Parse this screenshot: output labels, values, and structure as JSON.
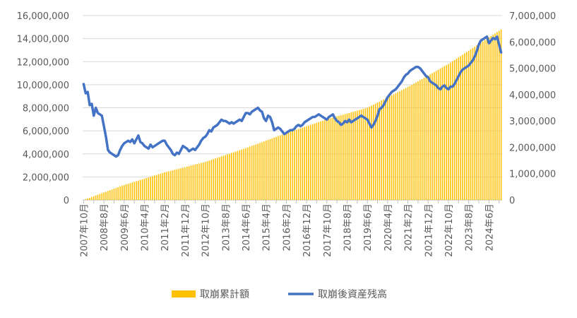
{
  "chart_data": {
    "type": "bar+line",
    "x_start": "2007-10",
    "x_end": "2024-12",
    "x_tick_labels": [
      "2007年10月",
      "2008年8月",
      "2009年6月",
      "2010年4月",
      "2011年2月",
      "2011年12月",
      "2012年10月",
      "2013年8月",
      "2014年6月",
      "2015年4月",
      "2016年2月",
      "2016年12月",
      "2017年10月",
      "2018年8月",
      "2019年6月",
      "2020年4月",
      "2021年2月",
      "2021年12月",
      "2022年10月",
      "2023年8月",
      "2024年6月"
    ],
    "y_left": {
      "min": 0,
      "max": 16000000,
      "step": 2000000,
      "tick_labels": [
        "0",
        "2,000,000",
        "4,000,000",
        "6,000,000",
        "8,000,000",
        "10,000,000",
        "12,000,000",
        "14,000,000",
        "16,000,000"
      ]
    },
    "y_right": {
      "min": 0,
      "max": 7000000,
      "step": 1000000,
      "tick_labels": [
        "0",
        "1,000,000",
        "2,000,000",
        "3,000,000",
        "4,000,000",
        "5,000,000",
        "6,000,000",
        "7,000,000"
      ]
    },
    "grid": true,
    "legend_position": "bottom",
    "series": [
      {
        "name": "取崩累計額",
        "type": "bar",
        "axis": "left",
        "color": "#FFC000",
        "anchors": [
          [
            "2007-10",
            0
          ],
          [
            "2009-06",
            1300000
          ],
          [
            "2011-02",
            2400000
          ],
          [
            "2012-10",
            3300000
          ],
          [
            "2014-06",
            4500000
          ],
          [
            "2016-02",
            5800000
          ],
          [
            "2017-10",
            7000000
          ],
          [
            "2019-06",
            8000000
          ],
          [
            "2021-02",
            9800000
          ],
          [
            "2022-10",
            11800000
          ],
          [
            "2024-12",
            14800000
          ]
        ]
      },
      {
        "name": "取崩後資産残高",
        "type": "line",
        "axis": "right",
        "color": "#4472C4",
        "points": [
          [
            "2007-10",
            4400000
          ],
          [
            "2007-11",
            4050000
          ],
          [
            "2007-12",
            4100000
          ],
          [
            "2008-01",
            3600000
          ],
          [
            "2008-02",
            3650000
          ],
          [
            "2008-03",
            3200000
          ],
          [
            "2008-04",
            3500000
          ],
          [
            "2008-05",
            3300000
          ],
          [
            "2008-06",
            3250000
          ],
          [
            "2008-07",
            3200000
          ],
          [
            "2008-08",
            2800000
          ],
          [
            "2008-09",
            2400000
          ],
          [
            "2008-10",
            1900000
          ],
          [
            "2008-11",
            1800000
          ],
          [
            "2008-12",
            1750000
          ],
          [
            "2009-01",
            1700000
          ],
          [
            "2009-02",
            1650000
          ],
          [
            "2009-03",
            1700000
          ],
          [
            "2009-04",
            1900000
          ],
          [
            "2009-05",
            2050000
          ],
          [
            "2009-06",
            2150000
          ],
          [
            "2009-07",
            2200000
          ],
          [
            "2009-08",
            2250000
          ],
          [
            "2009-09",
            2200000
          ],
          [
            "2009-10",
            2300000
          ],
          [
            "2009-11",
            2150000
          ],
          [
            "2009-12",
            2300000
          ],
          [
            "2010-01",
            2450000
          ],
          [
            "2010-02",
            2200000
          ],
          [
            "2010-03",
            2150000
          ],
          [
            "2010-04",
            2050000
          ],
          [
            "2010-05",
            2000000
          ],
          [
            "2010-06",
            1950000
          ],
          [
            "2010-07",
            2100000
          ],
          [
            "2010-08",
            2000000
          ],
          [
            "2010-09",
            2050000
          ],
          [
            "2010-10",
            2100000
          ],
          [
            "2010-11",
            2150000
          ],
          [
            "2010-12",
            2200000
          ],
          [
            "2011-01",
            2250000
          ],
          [
            "2011-02",
            2250000
          ],
          [
            "2011-03",
            2100000
          ],
          [
            "2011-04",
            2000000
          ],
          [
            "2011-05",
            1900000
          ],
          [
            "2011-06",
            1750000
          ],
          [
            "2011-07",
            1700000
          ],
          [
            "2011-08",
            1800000
          ],
          [
            "2011-09",
            1750000
          ],
          [
            "2011-10",
            1900000
          ],
          [
            "2011-11",
            2050000
          ],
          [
            "2011-12",
            2000000
          ],
          [
            "2012-01",
            1950000
          ],
          [
            "2012-02",
            1850000
          ],
          [
            "2012-03",
            1900000
          ],
          [
            "2012-04",
            1950000
          ],
          [
            "2012-05",
            1900000
          ],
          [
            "2012-06",
            2000000
          ],
          [
            "2012-07",
            2100000
          ],
          [
            "2012-08",
            2250000
          ],
          [
            "2012-09",
            2350000
          ],
          [
            "2012-10",
            2400000
          ],
          [
            "2012-11",
            2500000
          ],
          [
            "2012-12",
            2650000
          ],
          [
            "2013-01",
            2600000
          ],
          [
            "2013-02",
            2750000
          ],
          [
            "2013-03",
            2800000
          ],
          [
            "2013-04",
            2850000
          ],
          [
            "2013-05",
            2950000
          ],
          [
            "2013-06",
            3050000
          ],
          [
            "2013-07",
            3000000
          ],
          [
            "2013-08",
            3000000
          ],
          [
            "2013-09",
            2950000
          ],
          [
            "2013-10",
            2900000
          ],
          [
            "2013-11",
            2950000
          ],
          [
            "2013-12",
            2900000
          ],
          [
            "2014-01",
            2950000
          ],
          [
            "2014-02",
            3000000
          ],
          [
            "2014-03",
            3050000
          ],
          [
            "2014-04",
            3000000
          ],
          [
            "2014-05",
            3150000
          ],
          [
            "2014-06",
            3300000
          ],
          [
            "2014-07",
            3300000
          ],
          [
            "2014-08",
            3250000
          ],
          [
            "2014-09",
            3350000
          ],
          [
            "2014-10",
            3400000
          ],
          [
            "2014-11",
            3450000
          ],
          [
            "2014-12",
            3500000
          ],
          [
            "2015-01",
            3400000
          ],
          [
            "2015-02",
            3350000
          ],
          [
            "2015-03",
            3100000
          ],
          [
            "2015-04",
            3000000
          ],
          [
            "2015-05",
            3200000
          ],
          [
            "2015-06",
            3150000
          ],
          [
            "2015-07",
            2950000
          ],
          [
            "2015-08",
            2650000
          ],
          [
            "2015-09",
            2700000
          ],
          [
            "2015-10",
            2750000
          ],
          [
            "2015-11",
            2700000
          ],
          [
            "2015-12",
            2600000
          ],
          [
            "2016-01",
            2500000
          ],
          [
            "2016-02",
            2550000
          ],
          [
            "2016-03",
            2600000
          ],
          [
            "2016-04",
            2650000
          ],
          [
            "2016-05",
            2650000
          ],
          [
            "2016-06",
            2700000
          ],
          [
            "2016-07",
            2800000
          ],
          [
            "2016-08",
            2850000
          ],
          [
            "2016-09",
            2800000
          ],
          [
            "2016-10",
            2850000
          ],
          [
            "2016-11",
            2950000
          ],
          [
            "2016-12",
            3000000
          ],
          [
            "2017-01",
            3050000
          ],
          [
            "2017-02",
            3100000
          ],
          [
            "2017-03",
            3150000
          ],
          [
            "2017-04",
            3150000
          ],
          [
            "2017-05",
            3200000
          ],
          [
            "2017-06",
            3250000
          ],
          [
            "2017-07",
            3200000
          ],
          [
            "2017-08",
            3150000
          ],
          [
            "2017-09",
            3100000
          ],
          [
            "2017-10",
            3050000
          ],
          [
            "2017-11",
            3150000
          ],
          [
            "2017-12",
            3200000
          ],
          [
            "2018-01",
            3250000
          ],
          [
            "2018-02",
            3100000
          ],
          [
            "2018-03",
            3000000
          ],
          [
            "2018-04",
            2950000
          ],
          [
            "2018-05",
            2850000
          ],
          [
            "2018-06",
            2900000
          ],
          [
            "2018-07",
            3000000
          ],
          [
            "2018-08",
            2950000
          ],
          [
            "2018-09",
            3050000
          ],
          [
            "2018-10",
            2950000
          ],
          [
            "2018-11",
            3000000
          ],
          [
            "2018-12",
            3050000
          ],
          [
            "2019-01",
            3100000
          ],
          [
            "2019-02",
            3150000
          ],
          [
            "2019-03",
            3200000
          ],
          [
            "2019-04",
            3150000
          ],
          [
            "2019-05",
            3100000
          ],
          [
            "2019-06",
            3050000
          ],
          [
            "2019-07",
            2900000
          ],
          [
            "2019-08",
            2750000
          ],
          [
            "2019-09",
            2850000
          ],
          [
            "2019-10",
            3000000
          ],
          [
            "2019-11",
            3200000
          ],
          [
            "2019-12",
            3450000
          ],
          [
            "2020-01",
            3500000
          ],
          [
            "2020-02",
            3600000
          ],
          [
            "2020-03",
            3750000
          ],
          [
            "2020-04",
            3900000
          ],
          [
            "2020-05",
            4000000
          ],
          [
            "2020-06",
            4100000
          ],
          [
            "2020-07",
            4150000
          ],
          [
            "2020-08",
            4200000
          ],
          [
            "2020-09",
            4300000
          ],
          [
            "2020-10",
            4400000
          ],
          [
            "2020-11",
            4500000
          ],
          [
            "2020-12",
            4650000
          ],
          [
            "2021-01",
            4750000
          ],
          [
            "2021-02",
            4800000
          ],
          [
            "2021-03",
            4900000
          ],
          [
            "2021-04",
            4950000
          ],
          [
            "2021-05",
            5000000
          ],
          [
            "2021-06",
            5050000
          ],
          [
            "2021-07",
            5050000
          ],
          [
            "2021-08",
            5000000
          ],
          [
            "2021-09",
            4900000
          ],
          [
            "2021-10",
            4800000
          ],
          [
            "2021-11",
            4700000
          ],
          [
            "2021-12",
            4650000
          ],
          [
            "2022-01",
            4500000
          ],
          [
            "2022-02",
            4450000
          ],
          [
            "2022-03",
            4400000
          ],
          [
            "2022-04",
            4350000
          ],
          [
            "2022-05",
            4250000
          ],
          [
            "2022-06",
            4200000
          ],
          [
            "2022-07",
            4300000
          ],
          [
            "2022-08",
            4350000
          ],
          [
            "2022-09",
            4250000
          ],
          [
            "2022-10",
            4200000
          ],
          [
            "2022-11",
            4300000
          ],
          [
            "2022-12",
            4300000
          ],
          [
            "2023-01",
            4400000
          ],
          [
            "2023-02",
            4550000
          ],
          [
            "2023-03",
            4700000
          ],
          [
            "2023-04",
            4850000
          ],
          [
            "2023-05",
            4950000
          ],
          [
            "2023-06",
            5000000
          ],
          [
            "2023-07",
            5050000
          ],
          [
            "2023-08",
            5100000
          ],
          [
            "2023-09",
            5200000
          ],
          [
            "2023-10",
            5300000
          ],
          [
            "2023-11",
            5450000
          ],
          [
            "2023-12",
            5650000
          ],
          [
            "2024-01",
            5900000
          ],
          [
            "2024-02",
            6050000
          ],
          [
            "2024-03",
            6100000
          ],
          [
            "2024-04",
            6150000
          ],
          [
            "2024-05",
            6200000
          ],
          [
            "2024-06",
            5950000
          ],
          [
            "2024-07",
            6050000
          ],
          [
            "2024-08",
            6150000
          ],
          [
            "2024-09",
            6100000
          ],
          [
            "2024-10",
            6200000
          ],
          [
            "2024-11",
            5900000
          ],
          [
            "2024-12",
            5600000
          ]
        ]
      }
    ]
  }
}
